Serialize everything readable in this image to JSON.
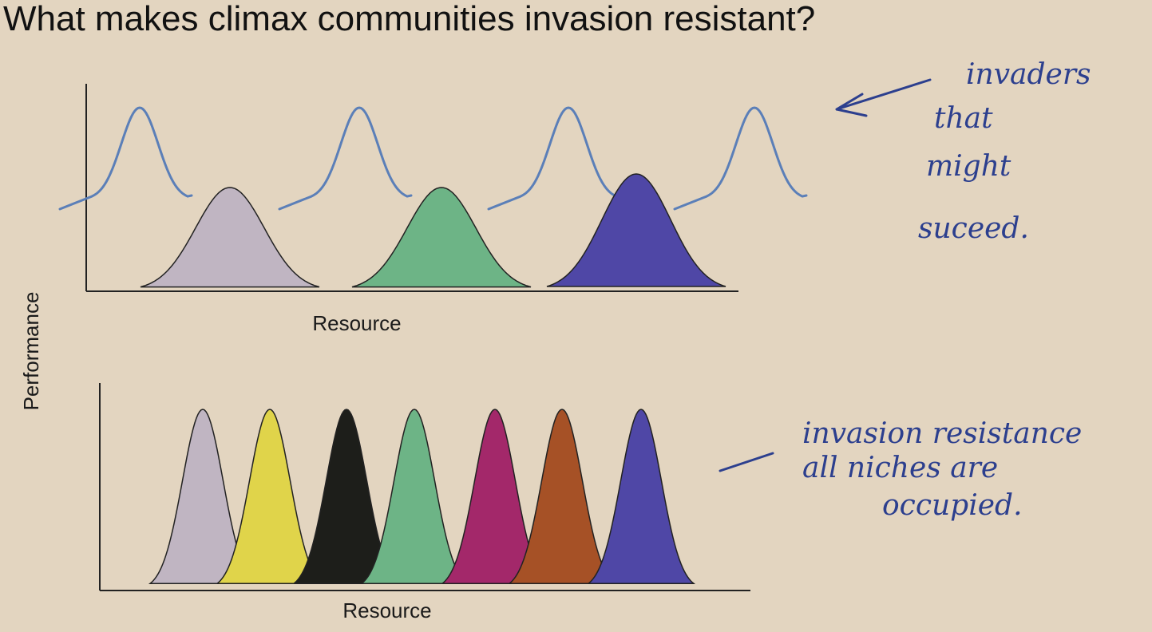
{
  "title": "What makes climax communities invasion resistant?",
  "y_label": "Performance",
  "top_panel": {
    "x_label": "Resource"
  },
  "bottom_panel": {
    "x_label": "Resource"
  },
  "annotations": [
    {
      "lines": [
        "invaders",
        "that",
        "might",
        "suceed."
      ]
    },
    {
      "lines": [
        "invasion resistance",
        "all niches are",
        "occupied."
      ]
    }
  ]
}
